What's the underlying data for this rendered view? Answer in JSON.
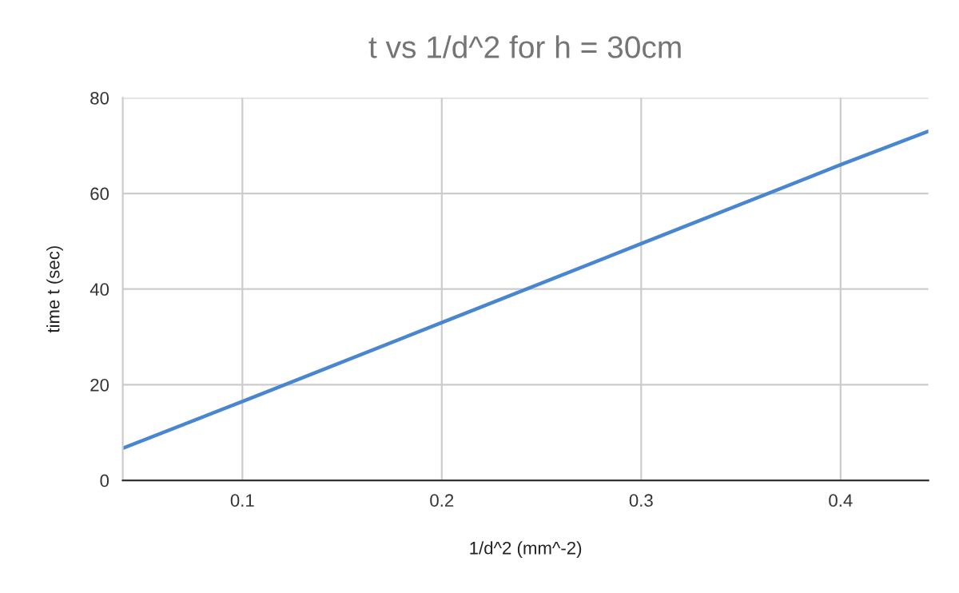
{
  "chart_data": {
    "type": "line",
    "title": "t vs 1/d^2 for h = 30cm",
    "xlabel": "1/d^2 (mm^-2)",
    "ylabel": "time t (sec)",
    "x": [
      0.04,
      0.1,
      0.2,
      0.3,
      0.4,
      0.444
    ],
    "series": [
      {
        "color": "#4a86d0",
        "values": [
          6.7,
          16.5,
          33,
          49.5,
          66,
          73
        ]
      }
    ],
    "xlim": [
      0.04,
      0.444
    ],
    "xticks": [
      0.1,
      0.2,
      0.3,
      0.4
    ],
    "ylim": [
      0,
      80
    ],
    "yticks": [
      0,
      20,
      40,
      60,
      80
    ],
    "grid": true,
    "legend": false
  }
}
